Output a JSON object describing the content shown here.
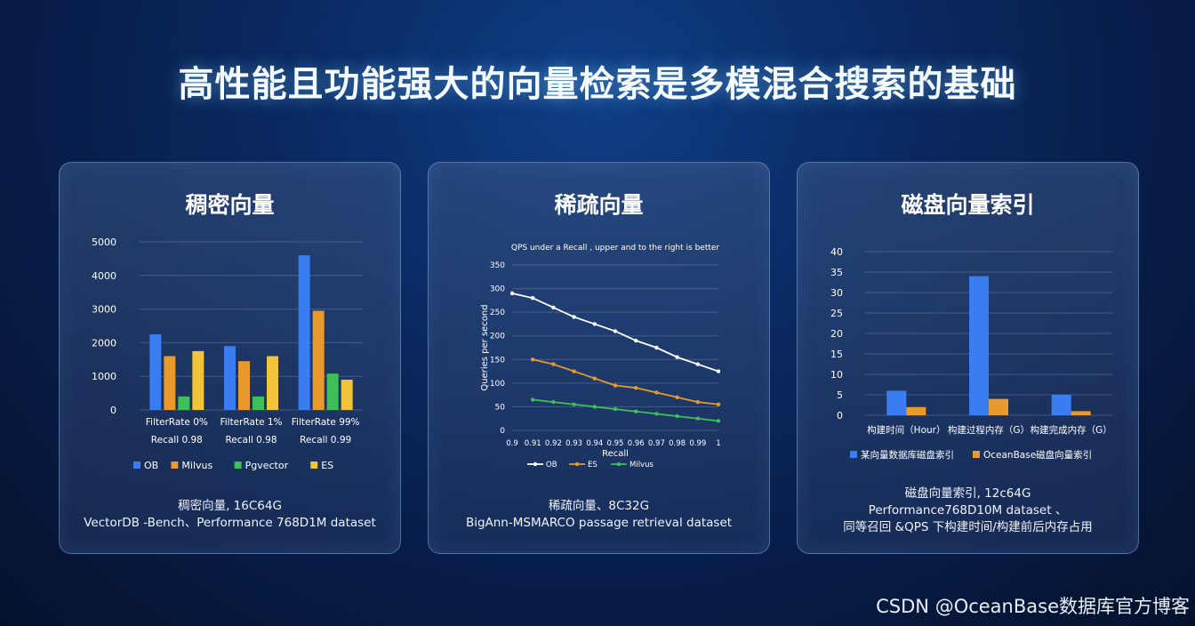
{
  "title": "高性能且功能强大的向量检索是多模混合搜索的基础",
  "watermark": "CSDN @OceanBase数据库官方博客",
  "panels": [
    {
      "title": "稠密向量",
      "caption_lines": [
        "稠密向量, 16C64G",
        "VectorDB -Bench、Performance 768D1M dataset"
      ]
    },
    {
      "title": "稀疏向量",
      "caption_lines": [
        "稀疏向量、8C32G",
        "BigAnn-MSMARCO passage retrieval dataset"
      ]
    },
    {
      "title": "磁盘向量索引",
      "caption_lines": [
        "磁盘向量索引, 12c64G",
        "Performance768D10M dataset 、",
        "同等召回 &QPS 下构建时间/构建前后内存占用"
      ]
    }
  ],
  "chart_data": [
    {
      "type": "bar",
      "categories": [
        [
          "FilterRate 0%",
          "Recall 0.98"
        ],
        [
          "FilterRate 1%",
          "Recall 0.98"
        ],
        [
          "FilterRate 99%",
          "Recall 0.99"
        ]
      ],
      "ylim": [
        0,
        5000
      ],
      "yticks": [
        0,
        1000,
        2000,
        3000,
        4000,
        5000
      ],
      "grid": true,
      "legend": "bottom",
      "series": [
        {
          "name": "OB",
          "color": "#3a7df0",
          "values": [
            2250,
            1900,
            4600
          ]
        },
        {
          "name": "Milvus",
          "color": "#e89a2c",
          "values": [
            1600,
            1450,
            2950
          ]
        },
        {
          "name": "Pgvector",
          "color": "#3fbf58",
          "values": [
            400,
            400,
            1080
          ]
        },
        {
          "name": "ES",
          "color": "#f2c43a",
          "values": [
            1750,
            1600,
            900
          ]
        }
      ]
    },
    {
      "type": "line",
      "title": "QPS under a Recall , upper and to the right is better",
      "xlabel": "Recall",
      "ylabel": "Queries per second",
      "x": [
        0.9,
        0.91,
        0.92,
        0.93,
        0.94,
        0.95,
        0.96,
        0.97,
        0.98,
        0.99,
        1
      ],
      "xtick_labels": [
        "0.9",
        "0.91",
        "0.92",
        "0.93",
        "0.94",
        "0.95",
        "0.96",
        "0.97",
        "0.98",
        "0.99",
        "1"
      ],
      "ylim": [
        0,
        350
      ],
      "yticks": [
        0,
        50,
        100,
        150,
        200,
        250,
        300,
        350
      ],
      "grid": true,
      "legend": "bottom",
      "series": [
        {
          "name": "OB",
          "color": "#ffffff",
          "values": [
            290,
            280,
            260,
            240,
            225,
            210,
            190,
            175,
            155,
            140,
            125
          ]
        },
        {
          "name": "ES",
          "color": "#e89a2c",
          "values": [
            null,
            150,
            140,
            125,
            110,
            95,
            90,
            80,
            70,
            60,
            55
          ]
        },
        {
          "name": "Milvus",
          "color": "#3fbf58",
          "values": [
            null,
            65,
            60,
            55,
            50,
            45,
            40,
            35,
            30,
            25,
            20
          ]
        }
      ]
    },
    {
      "type": "bar",
      "categories": [
        "构建时间（Hour）",
        "构建过程内存（G）",
        "构建完成内存（G）"
      ],
      "ylim": [
        0,
        40
      ],
      "yticks": [
        0,
        5,
        10,
        15,
        20,
        25,
        30,
        35,
        40
      ],
      "grid": true,
      "legend": "bottom",
      "series": [
        {
          "name": "某向量数据库磁盘索引",
          "color": "#3a7df0",
          "values": [
            6,
            34,
            5
          ]
        },
        {
          "name": "OceanBase磁盘向量索引",
          "color": "#e89a2c",
          "values": [
            2,
            4,
            1
          ]
        }
      ]
    }
  ]
}
